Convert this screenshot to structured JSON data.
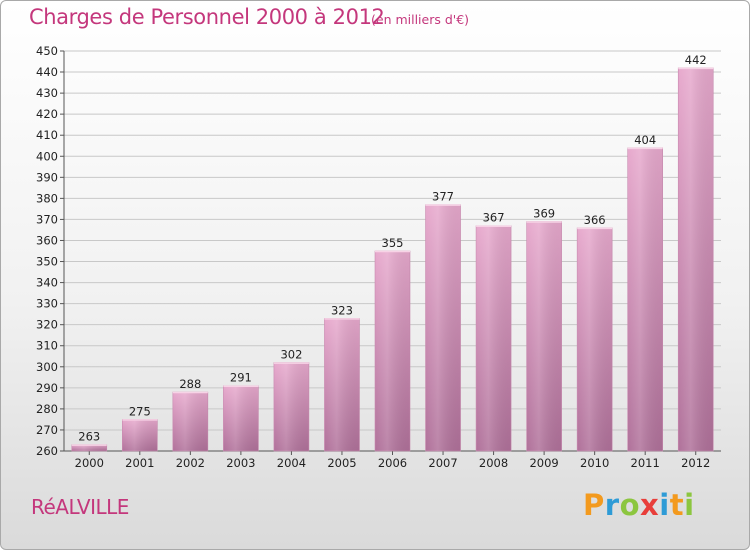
{
  "header": {
    "title": "Charges de Personnel 2000 à 2012",
    "subtitle": "(en milliers d'€)"
  },
  "footer": {
    "commune": "RéALVILLE",
    "logo": "Proxiti"
  },
  "colors": {
    "accent": "#c4377c",
    "bar_top": "#e7a9cd",
    "bar_bottom": "#b0719a"
  },
  "chart_data": {
    "type": "bar",
    "categories": [
      "2000",
      "2001",
      "2002",
      "2003",
      "2004",
      "2005",
      "2006",
      "2007",
      "2008",
      "2009",
      "2010",
      "2011",
      "2012"
    ],
    "values": [
      263,
      275,
      288,
      291,
      302,
      323,
      355,
      377,
      367,
      369,
      366,
      404,
      442
    ],
    "title": "Charges de Personnel 2000 à 2012",
    "subtitle": "(en milliers d'€)",
    "ylim": [
      260,
      450
    ],
    "yticks": [
      260,
      270,
      280,
      290,
      300,
      310,
      320,
      330,
      340,
      350,
      360,
      370,
      380,
      390,
      400,
      410,
      420,
      430,
      440,
      450
    ],
    "grid": true,
    "legend": "none"
  }
}
